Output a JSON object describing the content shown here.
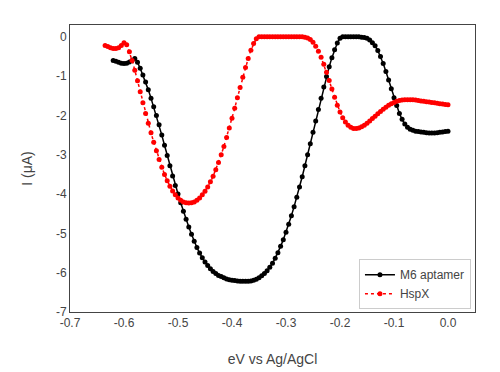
{
  "chart_data": {
    "type": "line",
    "xlabel": "eV vs Ag/AgCl",
    "ylabel": "I (μA)",
    "xlim": [
      -0.7,
      0.05
    ],
    "ylim": [
      -7,
      0.3
    ],
    "xticks": [
      -0.7,
      -0.6,
      -0.5,
      -0.4,
      -0.3,
      -0.2,
      -0.1,
      {
        "value": 0,
        "label": "0.0"
      }
    ],
    "yticks": [
      0,
      -1,
      -2,
      -3,
      -4,
      -5,
      -6,
      -7
    ],
    "grid": false,
    "legend": "lower right",
    "series": [
      {
        "name": "M6 aptamer",
        "color": "#000000",
        "line_style": "solid",
        "marker": "circle",
        "x": [
          -0.62,
          -0.615,
          -0.61,
          -0.605,
          -0.6,
          -0.595,
          -0.59,
          -0.585,
          -0.58,
          -0.575,
          -0.57,
          -0.565,
          -0.56,
          -0.555,
          -0.55,
          -0.545,
          -0.54,
          -0.535,
          -0.53,
          -0.525,
          -0.52,
          -0.515,
          -0.51,
          -0.505,
          -0.5,
          -0.495,
          -0.49,
          -0.485,
          -0.48,
          -0.475,
          -0.47,
          -0.465,
          -0.46,
          -0.455,
          -0.45,
          -0.445,
          -0.44,
          -0.435,
          -0.43,
          -0.425,
          -0.42,
          -0.415,
          -0.41,
          -0.405,
          -0.4,
          -0.395,
          -0.39,
          -0.385,
          -0.38,
          -0.375,
          -0.37,
          -0.365,
          -0.36,
          -0.355,
          -0.35,
          -0.345,
          -0.34,
          -0.335,
          -0.33,
          -0.325,
          -0.32,
          -0.315,
          -0.31,
          -0.305,
          -0.3,
          -0.295,
          -0.29,
          -0.285,
          -0.28,
          -0.275,
          -0.27,
          -0.265,
          -0.26,
          -0.255,
          -0.25,
          -0.245,
          -0.24,
          -0.235,
          -0.23,
          -0.225,
          -0.22,
          -0.215,
          -0.21,
          -0.205,
          -0.2,
          -0.195,
          -0.19,
          -0.185,
          -0.18,
          -0.175,
          -0.17,
          -0.165,
          -0.16,
          -0.155,
          -0.15,
          -0.145,
          -0.14,
          -0.135,
          -0.13,
          -0.125,
          -0.12,
          -0.115,
          -0.11,
          -0.105,
          -0.1,
          -0.095,
          -0.09,
          -0.085,
          -0.08,
          -0.075,
          -0.07,
          -0.065,
          -0.06,
          -0.055,
          -0.05,
          -0.045,
          -0.04,
          -0.035,
          -0.03,
          -0.025,
          -0.02,
          -0.015,
          -0.01,
          -0.005,
          0.0
        ],
        "values": [
          -0.6,
          -0.62,
          -0.65,
          -0.67,
          -0.68,
          -0.67,
          -0.64,
          -0.6,
          -0.55,
          -0.65,
          -0.8,
          -0.97,
          -1.15,
          -1.35,
          -1.56,
          -1.78,
          -2.0,
          -2.24,
          -2.5,
          -2.76,
          -3.02,
          -3.28,
          -3.54,
          -3.78,
          -4.0,
          -4.22,
          -4.44,
          -4.64,
          -4.84,
          -5.02,
          -5.2,
          -5.36,
          -5.5,
          -5.62,
          -5.73,
          -5.82,
          -5.9,
          -5.97,
          -6.02,
          -6.07,
          -6.1,
          -6.13,
          -6.16,
          -6.18,
          -6.19,
          -6.2,
          -6.21,
          -6.22,
          -6.22,
          -6.22,
          -6.22,
          -6.21,
          -6.19,
          -6.17,
          -6.13,
          -6.08,
          -6.02,
          -5.95,
          -5.86,
          -5.76,
          -5.63,
          -5.49,
          -5.33,
          -5.16,
          -4.97,
          -4.77,
          -4.55,
          -4.32,
          -4.08,
          -3.82,
          -3.56,
          -3.28,
          -3.0,
          -2.72,
          -2.43,
          -2.14,
          -1.85,
          -1.56,
          -1.28,
          -1.01,
          -0.76,
          -0.53,
          -0.33,
          -0.16,
          -0.04,
          -0.0,
          -0.0,
          -0.0,
          -0.0,
          -0.0,
          -0.0,
          -0.0,
          -0.01,
          -0.02,
          -0.04,
          -0.08,
          -0.15,
          -0.23,
          -0.35,
          -0.5,
          -0.68,
          -0.88,
          -1.1,
          -1.32,
          -1.55,
          -1.75,
          -1.95,
          -2.1,
          -2.22,
          -2.3,
          -2.35,
          -2.38,
          -2.4,
          -2.41,
          -2.42,
          -2.43,
          -2.44,
          -2.45,
          -2.45,
          -2.45,
          -2.44,
          -2.43,
          -2.42,
          -2.41,
          -2.4
        ]
      },
      {
        "name": "HspX",
        "color": "#ff0000",
        "line_style": "dotted",
        "marker": "circle",
        "x": [
          -0.635,
          -0.63,
          -0.625,
          -0.62,
          -0.615,
          -0.61,
          -0.605,
          -0.6,
          -0.595,
          -0.59,
          -0.585,
          -0.58,
          -0.575,
          -0.57,
          -0.565,
          -0.56,
          -0.555,
          -0.55,
          -0.545,
          -0.54,
          -0.535,
          -0.53,
          -0.525,
          -0.52,
          -0.515,
          -0.51,
          -0.505,
          -0.5,
          -0.495,
          -0.49,
          -0.485,
          -0.48,
          -0.475,
          -0.47,
          -0.465,
          -0.46,
          -0.455,
          -0.45,
          -0.445,
          -0.44,
          -0.435,
          -0.43,
          -0.425,
          -0.42,
          -0.415,
          -0.41,
          -0.405,
          -0.4,
          -0.395,
          -0.39,
          -0.385,
          -0.38,
          -0.375,
          -0.37,
          -0.365,
          -0.36,
          -0.355,
          -0.35,
          -0.345,
          -0.34,
          -0.335,
          -0.33,
          -0.325,
          -0.32,
          -0.315,
          -0.31,
          -0.305,
          -0.3,
          -0.295,
          -0.29,
          -0.285,
          -0.28,
          -0.275,
          -0.27,
          -0.265,
          -0.26,
          -0.255,
          -0.25,
          -0.245,
          -0.24,
          -0.235,
          -0.23,
          -0.225,
          -0.22,
          -0.215,
          -0.21,
          -0.205,
          -0.2,
          -0.195,
          -0.19,
          -0.185,
          -0.18,
          -0.175,
          -0.17,
          -0.165,
          -0.16,
          -0.155,
          -0.15,
          -0.145,
          -0.14,
          -0.135,
          -0.13,
          -0.125,
          -0.12,
          -0.115,
          -0.11,
          -0.105,
          -0.1,
          -0.095,
          -0.09,
          -0.085,
          -0.08,
          -0.075,
          -0.07,
          -0.065,
          -0.06,
          -0.055,
          -0.05,
          -0.045,
          -0.04,
          -0.035,
          -0.03,
          -0.025,
          -0.02,
          -0.015,
          -0.01,
          -0.005,
          0.0
        ],
        "values": [
          -0.22,
          -0.25,
          -0.28,
          -0.3,
          -0.3,
          -0.28,
          -0.22,
          -0.15,
          -0.2,
          -0.38,
          -0.6,
          -0.85,
          -1.12,
          -1.4,
          -1.68,
          -1.95,
          -2.2,
          -2.44,
          -2.68,
          -2.9,
          -3.12,
          -3.32,
          -3.5,
          -3.66,
          -3.8,
          -3.92,
          -4.02,
          -4.1,
          -4.16,
          -4.2,
          -4.22,
          -4.23,
          -4.22,
          -4.2,
          -4.16,
          -4.1,
          -4.02,
          -3.93,
          -3.82,
          -3.69,
          -3.55,
          -3.38,
          -3.2,
          -3.0,
          -2.79,
          -2.56,
          -2.32,
          -2.07,
          -1.82,
          -1.55,
          -1.29,
          -1.03,
          -0.78,
          -0.55,
          -0.34,
          -0.17,
          -0.05,
          -0.0,
          -0.0,
          -0.0,
          -0.0,
          -0.0,
          -0.0,
          -0.0,
          -0.0,
          -0.0,
          -0.0,
          -0.0,
          -0.0,
          -0.0,
          -0.0,
          -0.0,
          -0.0,
          -0.0,
          -0.01,
          -0.03,
          -0.07,
          -0.14,
          -0.24,
          -0.37,
          -0.52,
          -0.7,
          -0.9,
          -1.11,
          -1.33,
          -1.54,
          -1.74,
          -1.91,
          -2.06,
          -2.17,
          -2.25,
          -2.3,
          -2.33,
          -2.33,
          -2.32,
          -2.29,
          -2.25,
          -2.2,
          -2.14,
          -2.08,
          -2.02,
          -1.96,
          -1.9,
          -1.84,
          -1.79,
          -1.74,
          -1.7,
          -1.67,
          -1.64,
          -1.62,
          -1.61,
          -1.6,
          -1.6,
          -1.6,
          -1.6,
          -1.61,
          -1.62,
          -1.63,
          -1.64,
          -1.65,
          -1.66,
          -1.67,
          -1.68,
          -1.69,
          -1.7,
          -1.71,
          -1.72,
          -1.73
        ]
      }
    ]
  }
}
